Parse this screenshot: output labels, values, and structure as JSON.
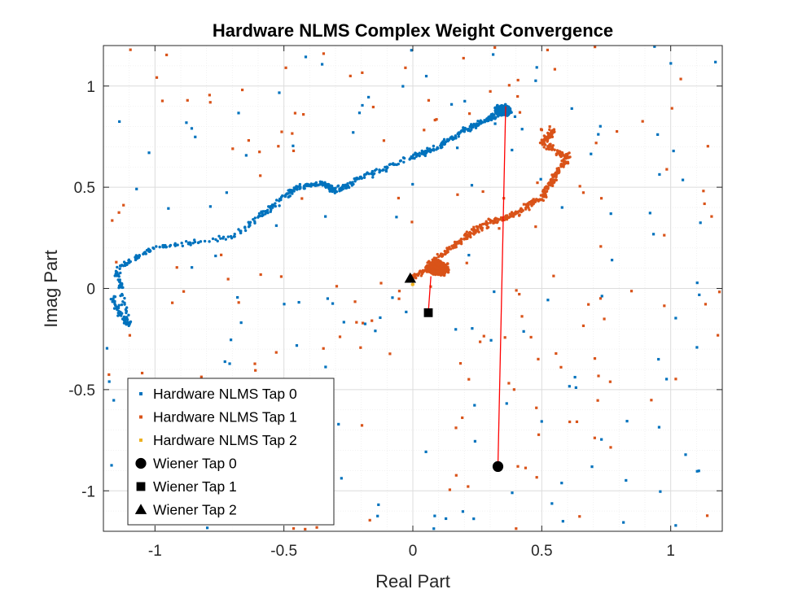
{
  "chart_data": {
    "type": "scatter",
    "title": "Hardware NLMS Complex Weight Convergence",
    "xlabel": "Real Part",
    "ylabel": "Imag Part",
    "xlim": [
      -1.2,
      1.2
    ],
    "ylim": [
      -1.2,
      1.2
    ],
    "x_ticks": [
      -1,
      -0.5,
      0,
      0.5,
      1
    ],
    "x_tick_labels": [
      "-1",
      "-0.5",
      "0",
      "0.5",
      "1"
    ],
    "y_ticks": [
      -1,
      -0.5,
      0,
      0.5,
      1
    ],
    "y_tick_labels": [
      "-1",
      "-0.5",
      "0",
      "0.5",
      "1"
    ],
    "grid": true,
    "minor_grid": true,
    "legend_position": "bottom-left",
    "colors": {
      "tap0": "#0072BD",
      "tap1": "#D95319",
      "tap2": "#EDB120",
      "wiener": "#000000",
      "path": "#FF0000",
      "grid_major": "#dcdcdc",
      "grid_minor": "#eeeeee",
      "axes": "#262626"
    },
    "series": [
      {
        "name": "Hardware NLMS Tap 0",
        "marker": "dot",
        "cluster_center": [
          0.35,
          0.88
        ],
        "trajectory": [
          [
            -1.17,
            -0.05
          ],
          [
            -1.1,
            -0.18
          ],
          [
            -1.15,
            0.1
          ],
          [
            -1.0,
            0.2
          ],
          [
            -0.7,
            0.25
          ],
          [
            -0.55,
            0.4
          ],
          [
            -0.45,
            0.5
          ],
          [
            -0.35,
            0.52
          ],
          [
            -0.3,
            0.48
          ],
          [
            -0.2,
            0.55
          ],
          [
            0.0,
            0.65
          ],
          [
            0.1,
            0.7
          ],
          [
            0.2,
            0.78
          ],
          [
            0.3,
            0.84
          ],
          [
            0.35,
            0.88
          ]
        ]
      },
      {
        "name": "Hardware NLMS Tap 1",
        "marker": "dot",
        "cluster_center": [
          0.1,
          0.1
        ],
        "trajectory": [
          [
            0.0,
            0.05
          ],
          [
            0.1,
            0.15
          ],
          [
            0.2,
            0.25
          ],
          [
            0.3,
            0.33
          ],
          [
            0.4,
            0.37
          ],
          [
            0.5,
            0.45
          ],
          [
            0.55,
            0.55
          ],
          [
            0.6,
            0.65
          ],
          [
            0.5,
            0.72
          ],
          [
            0.55,
            0.78
          ]
        ]
      },
      {
        "name": "Hardware NLMS Tap 2",
        "marker": "dot",
        "cluster_center": [
          0.0,
          0.02
        ],
        "trajectory": []
      }
    ],
    "wiener": [
      {
        "name": "Wiener Tap 0",
        "marker": "circle",
        "x": 0.33,
        "y": -0.88
      },
      {
        "name": "Wiener Tap 1",
        "marker": "square",
        "x": 0.06,
        "y": -0.12
      },
      {
        "name": "Wiener Tap 2",
        "marker": "triangle",
        "x": -0.01,
        "y": 0.05
      }
    ],
    "paths": [
      {
        "from": [
          0.33,
          -0.88
        ],
        "to": [
          0.36,
          0.9
        ]
      },
      {
        "from": [
          0.06,
          -0.12
        ],
        "to": [
          0.07,
          0.06
        ]
      }
    ],
    "legend": [
      {
        "label": "Hardware NLMS Tap 0",
        "marker": "small-square",
        "color": "#0072BD"
      },
      {
        "label": "Hardware NLMS Tap 1",
        "marker": "small-square",
        "color": "#D95319"
      },
      {
        "label": "Hardware NLMS Tap 2",
        "marker": "small-square",
        "color": "#EDB120"
      },
      {
        "label": "Wiener Tap 0",
        "marker": "circle",
        "color": "#000000"
      },
      {
        "label": "Wiener Tap 1",
        "marker": "square",
        "color": "#000000"
      },
      {
        "label": "Wiener Tap 2",
        "marker": "triangle",
        "color": "#000000"
      }
    ]
  }
}
